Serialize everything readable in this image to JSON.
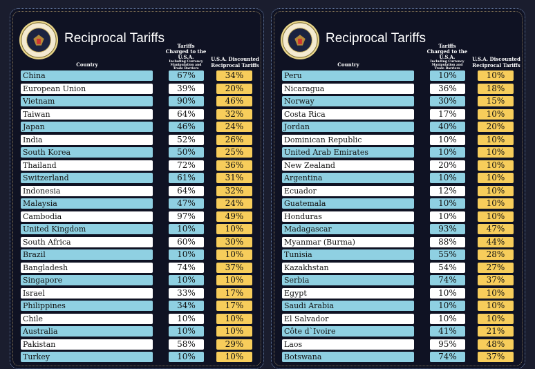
{
  "title": "Reciprocal Tariffs",
  "headers": {
    "country": "Country",
    "tariffs_charged": "Tariffs Charged to the U.S.A.",
    "tariffs_note": "Including Currency Manipulation and Trade Barriers",
    "reciprocal": "U.S.A. Discounted Reciprocal Tariffs"
  },
  "colors": {
    "blue_row": "#8fd0e2",
    "white_row": "#ffffff",
    "reciprocal": "#f7cd5b",
    "background": "#0f1223"
  },
  "seal_text": "Seal of the President of the United States",
  "left": [
    [
      "China",
      "67%",
      "34%"
    ],
    [
      "European Union",
      "39%",
      "20%"
    ],
    [
      "Vietnam",
      "90%",
      "46%"
    ],
    [
      "Taiwan",
      "64%",
      "32%"
    ],
    [
      "Japan",
      "46%",
      "24%"
    ],
    [
      "India",
      "52%",
      "26%"
    ],
    [
      "South Korea",
      "50%",
      "25%"
    ],
    [
      "Thailand",
      "72%",
      "36%"
    ],
    [
      "Switzerland",
      "61%",
      "31%"
    ],
    [
      "Indonesia",
      "64%",
      "32%"
    ],
    [
      "Malaysia",
      "47%",
      "24%"
    ],
    [
      "Cambodia",
      "97%",
      "49%"
    ],
    [
      "United Kingdom",
      "10%",
      "10%"
    ],
    [
      "South Africa",
      "60%",
      "30%"
    ],
    [
      "Brazil",
      "10%",
      "10%"
    ],
    [
      "Bangladesh",
      "74%",
      "37%"
    ],
    [
      "Singapore",
      "10%",
      "10%"
    ],
    [
      "Israel",
      "33%",
      "17%"
    ],
    [
      "Philippines",
      "34%",
      "17%"
    ],
    [
      "Chile",
      "10%",
      "10%"
    ],
    [
      "Australia",
      "10%",
      "10%"
    ],
    [
      "Pakistan",
      "58%",
      "29%"
    ],
    [
      "Turkey",
      "10%",
      "10%"
    ]
  ],
  "right": [
    [
      "Peru",
      "10%",
      "10%"
    ],
    [
      "Nicaragua",
      "36%",
      "18%"
    ],
    [
      "Norway",
      "30%",
      "15%"
    ],
    [
      "Costa Rica",
      "17%",
      "10%"
    ],
    [
      "Jordan",
      "40%",
      "20%"
    ],
    [
      "Dominican Republic",
      "10%",
      "10%"
    ],
    [
      "United Arab Emirates",
      "10%",
      "10%"
    ],
    [
      "New Zealand",
      "20%",
      "10%"
    ],
    [
      "Argentina",
      "10%",
      "10%"
    ],
    [
      "Ecuador",
      "12%",
      "10%"
    ],
    [
      "Guatemala",
      "10%",
      "10%"
    ],
    [
      "Honduras",
      "10%",
      "10%"
    ],
    [
      "Madagascar",
      "93%",
      "47%"
    ],
    [
      "Myanmar (Burma)",
      "88%",
      "44%"
    ],
    [
      "Tunisia",
      "55%",
      "28%"
    ],
    [
      "Kazakhstan",
      "54%",
      "27%"
    ],
    [
      "Serbia",
      "74%",
      "37%"
    ],
    [
      "Egypt",
      "10%",
      "10%"
    ],
    [
      "Saudi Arabia",
      "10%",
      "10%"
    ],
    [
      "El Salvador",
      "10%",
      "10%"
    ],
    [
      "Côte d`Ivoire",
      "41%",
      "21%"
    ],
    [
      "Laos",
      "95%",
      "48%"
    ],
    [
      "Botswana",
      "74%",
      "37%"
    ]
  ]
}
